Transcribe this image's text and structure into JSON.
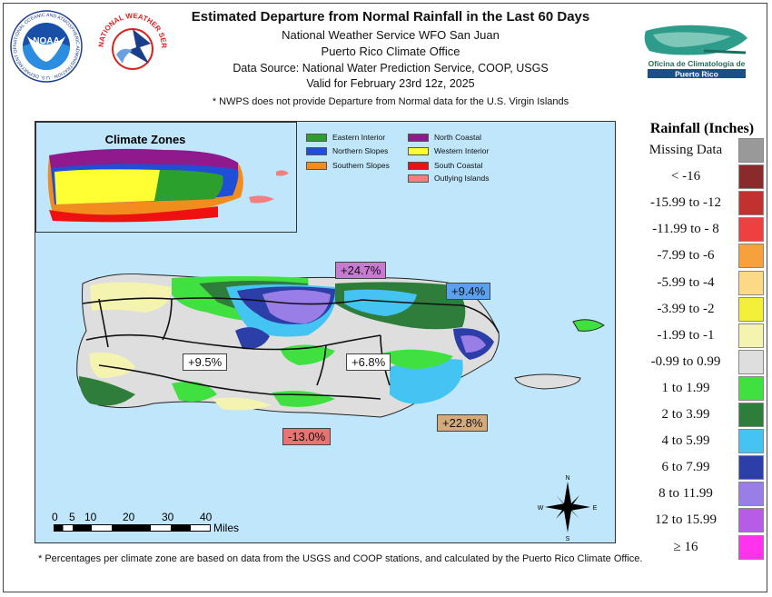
{
  "header": {
    "title": "Estimated Departure from Normal Rainfall in the Last 60 Days",
    "office": "National Weather Service WFO San Juan",
    "climate_office": "Puerto Rico Climate Office",
    "source": "Data Source: National Water Prediction Service, COOP, USGS",
    "valid": "Valid for February 23rd 12z, 2025",
    "note": "* NWPS does not provide Departure from Normal data for the U.S. Virgin Islands"
  },
  "logos": {
    "noaa": "NOAA",
    "noaa_ring": "NATIONAL OCEANIC AND ATMOSPHERIC ADMINISTRATION · U.S. DEPARTMENT OF COMMERCE",
    "nws_ring": "NATIONAL WEATHER SERVICE",
    "climate_office_line1": "Oficina de Climatología de",
    "climate_office_line2": "Puerto Rico"
  },
  "inset": {
    "title": "Climate Zones",
    "zones": [
      {
        "label": "Eastern Interior",
        "color": "#2ca02c"
      },
      {
        "label": "Northern Slopes",
        "color": "#1f4fd6"
      },
      {
        "label": "Southern Slopes",
        "color": "#f28c1e"
      },
      {
        "label": "North Coastal",
        "color": "#8e1a8e"
      },
      {
        "label": "Western Interior",
        "color": "#ffff33"
      },
      {
        "label": "South Coastal",
        "color": "#ee1111"
      },
      {
        "label": "Outlying Islands",
        "color": "#f08080"
      }
    ]
  },
  "zone_percentages": [
    {
      "zone": "North Coastal",
      "text": "+24.7%",
      "bg": "#c77ad0"
    },
    {
      "zone": "Northern Slopes",
      "text": "+9.4%",
      "bg": "#5aa0ee"
    },
    {
      "zone": "Western Interior",
      "text": "+9.5%",
      "bg": "#ffffff"
    },
    {
      "zone": "Eastern Interior",
      "text": "+6.8%",
      "bg": "#ffffff"
    },
    {
      "zone": "South Coastal",
      "text": "-13.0%",
      "bg": "#e87373"
    },
    {
      "zone": "Southern Slopes",
      "text": "+22.8%",
      "bg": "#d4aa7a"
    }
  ],
  "scale_bar": {
    "labels": [
      "0",
      "5",
      "10",
      "20",
      "30",
      "40"
    ],
    "unit": "Miles"
  },
  "compass": {
    "n": "N",
    "s": "S",
    "e": "E",
    "w": "W"
  },
  "colorbar": {
    "title": "Rainfall (Inches)",
    "classes": [
      {
        "label": "Missing Data",
        "color": "#999999"
      },
      {
        "label": "< -16",
        "color": "#8b2a2a"
      },
      {
        "label": "-15.99 to -12",
        "color": "#c23030"
      },
      {
        "label": "-11.99 to - 8",
        "color": "#ee4040"
      },
      {
        "label": "-7.99 to  -6",
        "color": "#f7a13c"
      },
      {
        "label": "-5.99 to -4",
        "color": "#fbd987"
      },
      {
        "label": "-3.99 to -2",
        "color": "#f4f03a"
      },
      {
        "label": "-1.99 to  -1",
        "color": "#f4f4b0"
      },
      {
        "label": "-0.99 to 0.99",
        "color": "#dedede"
      },
      {
        "label": "1 to 1.99",
        "color": "#40e040"
      },
      {
        "label": "2 to 3.99",
        "color": "#2e7d3a"
      },
      {
        "label": "4 to 5.99",
        "color": "#44c4f2"
      },
      {
        "label": "6 to 7.99",
        "color": "#2c3ea8"
      },
      {
        "label": "8 to 11.99",
        "color": "#9a7ee8"
      },
      {
        "label": "12 to 15.99",
        "color": "#b65ce6"
      },
      {
        "label": "≥  16",
        "color": "#ff33ee"
      }
    ]
  },
  "footnote": "* Percentages per climate zone are based on data from the USGS and COOP stations, and calculated by the Puerto Rico Climate Office."
}
